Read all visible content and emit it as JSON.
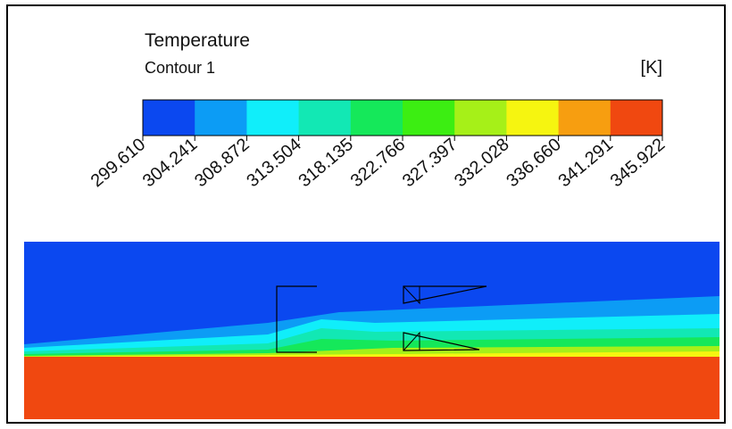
{
  "legend": {
    "title": "Temperature",
    "subtitle": "Contour 1",
    "unit": "[K]",
    "levels": [
      "299.610",
      "304.241",
      "308.872",
      "313.504",
      "318.135",
      "322.766",
      "327.397",
      "332.028",
      "336.660",
      "341.291",
      "345.922"
    ],
    "colors": [
      "#0b48f0",
      "#0c9cf5",
      "#10eefa",
      "#12e8b4",
      "#15e85a",
      "#3cee12",
      "#a6f018",
      "#f6f510",
      "#f79e10",
      "#f04810"
    ]
  }
}
